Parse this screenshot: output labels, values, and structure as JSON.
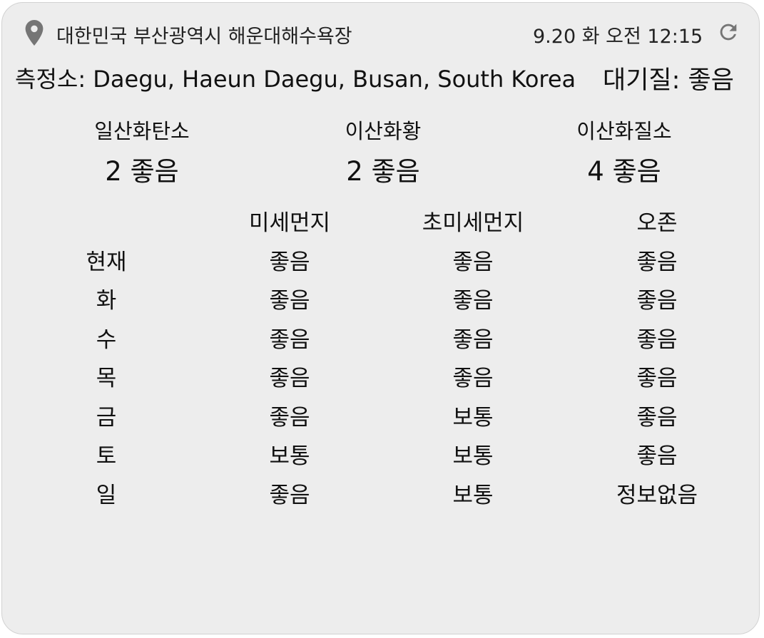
{
  "header": {
    "location": "대한민국 부산광역시 해운대해수욕장",
    "datetime": "9.20 화 오전 12:15",
    "station": "측정소: Daegu, Haeun Daegu, Busan, South Korea",
    "air_quality": "대기질: 좋음",
    "icons": {
      "location": "map-pin-icon",
      "refresh": "refresh-icon"
    },
    "icon_color": "#757575"
  },
  "gases": [
    {
      "name": "일산화탄소",
      "value": "2 좋음"
    },
    {
      "name": "이산화황",
      "value": "2 좋음"
    },
    {
      "name": "이산화질소",
      "value": "4 좋음"
    }
  ],
  "forecast": {
    "columns": [
      "",
      "미세먼지",
      "초미세먼지",
      "오존"
    ],
    "rows": [
      [
        "현재",
        "좋음",
        "좋음",
        "좋음"
      ],
      [
        "화",
        "좋음",
        "좋음",
        "좋음"
      ],
      [
        "수",
        "좋음",
        "좋음",
        "좋음"
      ],
      [
        "목",
        "좋음",
        "좋음",
        "좋음"
      ],
      [
        "금",
        "좋음",
        "보통",
        "좋음"
      ],
      [
        "토",
        "보통",
        "보통",
        "좋음"
      ],
      [
        "일",
        "좋음",
        "보통",
        "정보없음"
      ]
    ]
  }
}
